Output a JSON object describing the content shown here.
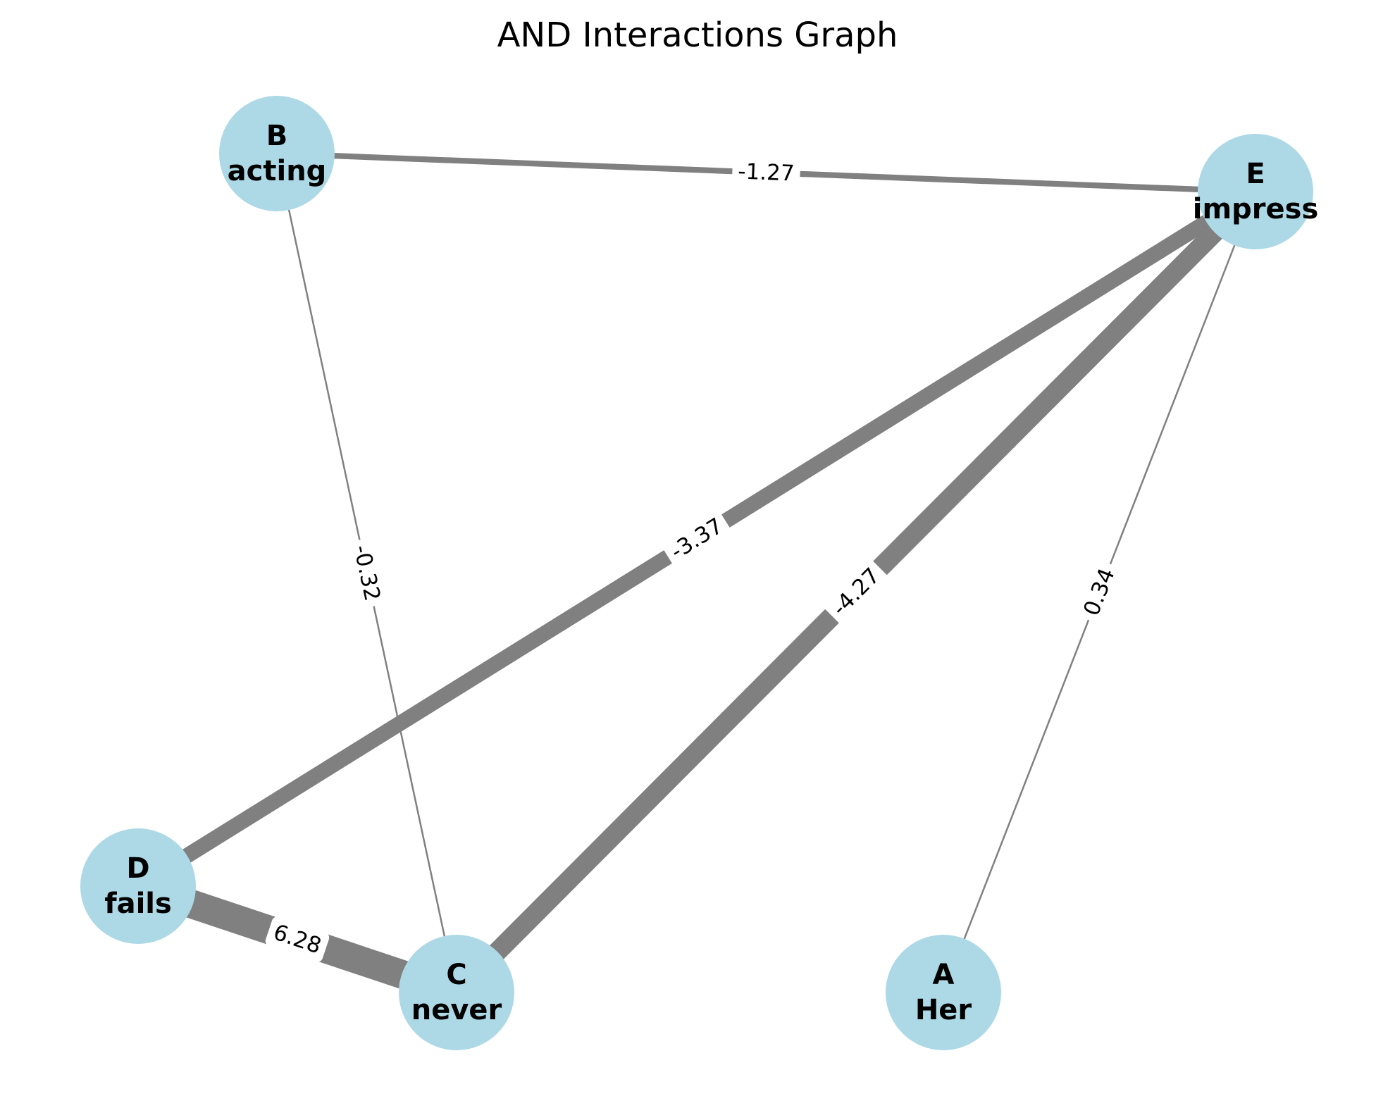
{
  "title": "AND Interactions Graph",
  "colors": {
    "node_fill": "#add8e6",
    "edge": "#808080",
    "label_bg": "#ffffff"
  },
  "nodes": [
    {
      "id": "A",
      "word": "Her"
    },
    {
      "id": "B",
      "word": "acting"
    },
    {
      "id": "C",
      "word": "never"
    },
    {
      "id": "D",
      "word": "fails"
    },
    {
      "id": "E",
      "word": "impress"
    }
  ],
  "edges": [
    {
      "source": "B",
      "target": "E",
      "weight": -1.27,
      "label": "-1.27"
    },
    {
      "source": "B",
      "target": "C",
      "weight": -0.32,
      "label": "-0.32"
    },
    {
      "source": "E",
      "target": "D",
      "weight": -3.37,
      "label": "-3.37"
    },
    {
      "source": "E",
      "target": "C",
      "weight": -4.27,
      "label": "-4.27"
    },
    {
      "source": "E",
      "target": "A",
      "weight": 0.34,
      "label": "0.34"
    },
    {
      "source": "D",
      "target": "C",
      "weight": 6.28,
      "label": "6.28"
    }
  ]
}
